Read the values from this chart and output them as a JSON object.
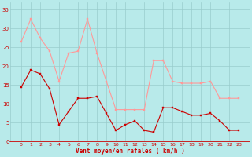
{
  "x": [
    0,
    1,
    2,
    3,
    4,
    5,
    6,
    7,
    8,
    9,
    10,
    11,
    12,
    13,
    14,
    15,
    16,
    17,
    18,
    19,
    20,
    21,
    22,
    23
  ],
  "mean_wind": [
    14.5,
    19,
    18,
    14,
    4.5,
    8,
    11.5,
    11.5,
    12,
    7.5,
    3,
    4.5,
    5.5,
    3,
    2.5,
    9,
    9,
    8,
    7,
    7,
    7.5,
    5.5,
    3,
    3
  ],
  "gust_wind": [
    26.5,
    32.5,
    27.5,
    24,
    16,
    23.5,
    24,
    32.5,
    23.5,
    16,
    8.5,
    8.5,
    8.5,
    8.5,
    21.5,
    21.5,
    16,
    15.5,
    15.5,
    15.5,
    16,
    11.5,
    11.5,
    11.5
  ],
  "mean_color": "#cc0000",
  "gust_color": "#ff9999",
  "bg_color": "#b8eaea",
  "grid_color": "#99cccc",
  "xlabel": "Vent moyen/en rafales ( km/h )",
  "xlabel_color": "#cc0000",
  "tick_color": "#cc0000",
  "ylim": [
    0,
    37
  ],
  "yticks": [
    0,
    5,
    10,
    15,
    20,
    25,
    30,
    35
  ],
  "xticks": [
    0,
    1,
    2,
    3,
    4,
    5,
    6,
    7,
    8,
    9,
    10,
    11,
    12,
    13,
    14,
    15,
    16,
    17,
    18,
    19,
    20,
    21,
    22,
    23
  ],
  "ytick_labels": [
    "0",
    "5",
    "10",
    "15",
    "20",
    "25",
    "30",
    "35"
  ]
}
